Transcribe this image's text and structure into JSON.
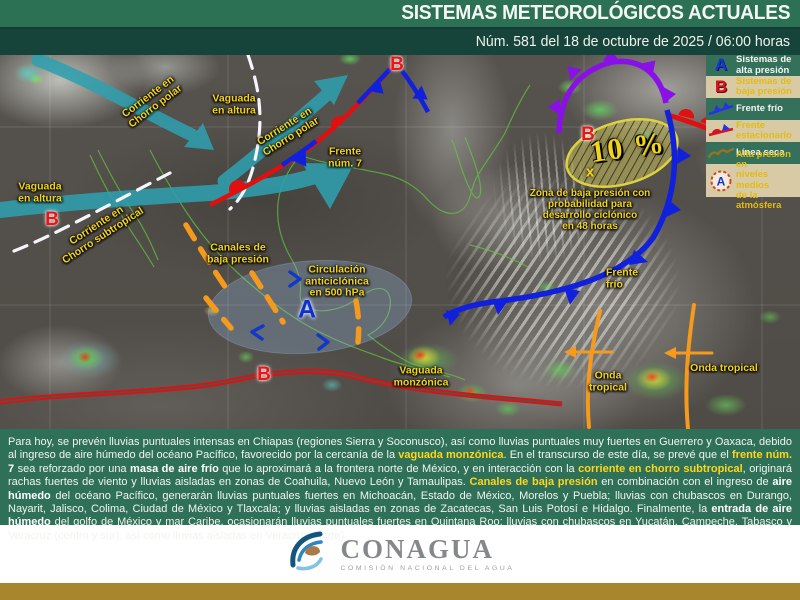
{
  "header": {
    "title": "SISTEMAS METEOROLÓGICOS ACTUALES",
    "subtitle": "Núm. 581 del 18 de octubre de 2025 / 06:00 horas"
  },
  "legend": {
    "items": [
      {
        "icon": "high-pressure-letter",
        "letter": "A",
        "label": "Sistemas de\nalta presión"
      },
      {
        "icon": "low-pressure-letter",
        "letter": "B",
        "label": "Sistemas de\nbaja presión"
      },
      {
        "icon": "cold-front",
        "label": "Frente frío"
      },
      {
        "icon": "stationary-front",
        "label": "Frente\nestacionario"
      },
      {
        "icon": "dry-line",
        "label": "Línea seca"
      },
      {
        "icon": "mid-level-high",
        "letter": "A",
        "label": "Alta presión en\nniveles medios\nde la atmósfera"
      }
    ]
  },
  "map": {
    "labels": {
      "polar_jet_w": "Corriente en\nChorro polar",
      "polar_jet_e": "Corriente en\nChorro polar",
      "subtropical_jet": "Corriente en\nChorro subtropical",
      "vaguada_ne": "Vaguada\nen altura",
      "vaguada_w": "Vaguada\nen altura",
      "frente_7": "Frente\nnúm. 7",
      "canales": "Canales de\nbaja presión",
      "circulacion": "Circulación\nanticiclónica\nen 500 hPa",
      "vaguada_monzonica": "Vaguada\nmonzónica",
      "frente_frio": "Frente\nfrío",
      "onda_tropical_1": "Onda\ntropical",
      "onda_tropical_2": "Onda tropical",
      "zona_baja": "Zona de baja presión con\nprobabilidad para\ndesarrollo ciclónico\nen 48 horas"
    },
    "markers": {
      "low_letter": "B",
      "high_letter": "A",
      "x_mark": "x",
      "probability": "10 %"
    }
  },
  "forecast": {
    "segments": [
      {
        "t": "Para hoy, se prevén lluvias puntuales intensas en Chiapas (regiones Sierra y Soconusco), así como lluvias puntuales muy fuertes en Guerrero y Oaxaca, debido al ingreso de aire húmedo del océano Pacífico, favorecido por la cercanía de la ",
        "s": "n"
      },
      {
        "t": "vaguada monzónica",
        "s": "y"
      },
      {
        "t": ". En el transcurso de este día, se prevé que el ",
        "s": "n"
      },
      {
        "t": "frente núm.",
        "s": "y"
      },
      {
        "t": " 7",
        "s": "b"
      },
      {
        "t": " sea reforzado por una ",
        "s": "n"
      },
      {
        "t": "masa de aire frío",
        "s": "b"
      },
      {
        "t": " que lo aproximará a la frontera norte de México, y en interacción con la ",
        "s": "n"
      },
      {
        "t": "corriente en chorro subtropical",
        "s": "y"
      },
      {
        "t": ", originará rachas fuertes de viento y lluvias aisladas en zonas de Coahuila, Nuevo León y Tamaulipas. ",
        "s": "n"
      },
      {
        "t": "Canales de baja presión",
        "s": "y"
      },
      {
        "t": " en combinación con el ingreso de ",
        "s": "n"
      },
      {
        "t": "aire húmedo",
        "s": "b"
      },
      {
        "t": " del océano Pacífico, generarán lluvias puntuales fuertes en Michoacán, Estado de México, Morelos y Puebla; lluvias con chubascos en Durango, Nayarit, Jalisco, Colima, Ciudad de México y Tlaxcala; y lluvias aisladas en zonas de Zacatecas, San Luis Potosí e Hidalgo. Finalmente, la ",
        "s": "n"
      },
      {
        "t": "entrada de aire húmedo",
        "s": "b"
      },
      {
        "t": " del golfo de México y mar Caribe, ocasionarán lluvias puntuales fuertes en Quintana Roo; lluvias con chubascos en Yucatán, Campeche, Tabasco y Veracruz (centro y sur), así como lluvias aisladas en Veracruz (norte).",
        "s": "n"
      }
    ]
  },
  "footer": {
    "logo": "CONAGUA",
    "tagline": "COMISIÓN NACIONAL DEL AGUA"
  },
  "colors": {
    "header_green": "#2c7154",
    "header_dark_green": "#17443a",
    "forecast_green": "#2f7158",
    "legend_cream": "#d8caa4",
    "label_yellow": "#f2d41c",
    "front_blue": "#1020dd",
    "front_red": "#e01010",
    "front_purple": "#8a10e8",
    "jet_teal": "#2f9fae",
    "orange_line": "#f59a1d",
    "gold_bar": "#a8862e"
  }
}
